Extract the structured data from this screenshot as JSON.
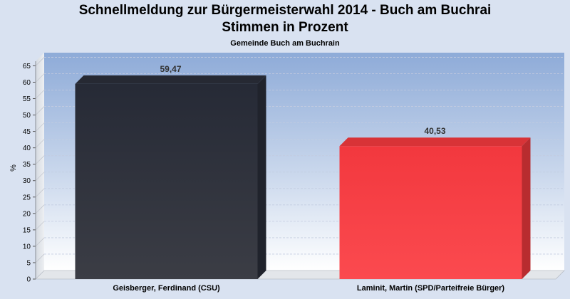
{
  "chart_data": {
    "type": "bar",
    "title": "Schnellmeldung zur Bürgermeisterwahl 2014 - Buch am Buchrai",
    "subtitle": "Stimmen in Prozent",
    "subsubtitle": "Gemeinde Buch am Buchrain",
    "ylabel": "%",
    "xlabel": "",
    "ylim": [
      0,
      69
    ],
    "yticks": [
      0,
      5,
      10,
      15,
      20,
      25,
      30,
      35,
      40,
      45,
      50,
      55,
      60,
      65
    ],
    "categories": [
      "Geisberger, Ferdinand (CSU)",
      "Laminit, Martin (SPD/Parteifreie Bürger)"
    ],
    "values": [
      59.47,
      40.53
    ],
    "value_labels": [
      "59,47",
      "40,53"
    ],
    "colors": [
      "#2b2f3a",
      "#f53a3f"
    ],
    "grid": true,
    "legend": "none"
  }
}
